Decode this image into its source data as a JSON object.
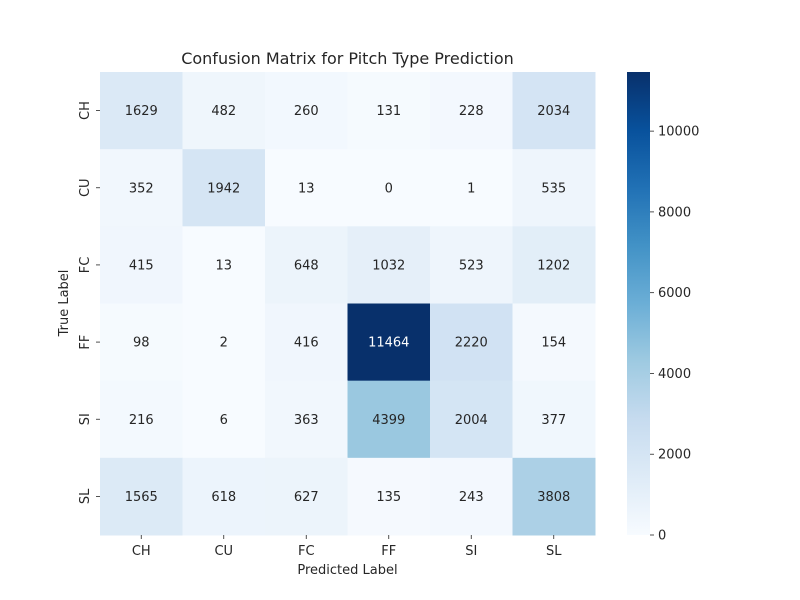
{
  "chart_data": {
    "type": "heatmap",
    "title": "Confusion Matrix for Pitch Type Prediction",
    "xlabel": "Predicted Label",
    "ylabel": "True Label",
    "x_categories": [
      "CH",
      "CU",
      "FC",
      "FF",
      "SI",
      "SL"
    ],
    "y_categories": [
      "CH",
      "CU",
      "FC",
      "FF",
      "SI",
      "SL"
    ],
    "values": [
      [
        1629,
        482,
        260,
        131,
        228,
        2034
      ],
      [
        352,
        1942,
        13,
        0,
        1,
        535
      ],
      [
        415,
        13,
        648,
        1032,
        523,
        1202
      ],
      [
        98,
        2,
        416,
        11464,
        2220,
        154
      ],
      [
        216,
        6,
        363,
        4399,
        2004,
        377
      ],
      [
        1565,
        618,
        627,
        135,
        243,
        3808
      ]
    ],
    "colormap": "Blues",
    "vmin": 0,
    "vmax": 11464,
    "colorbar_ticks": [
      0,
      2000,
      4000,
      6000,
      8000,
      10000
    ]
  }
}
